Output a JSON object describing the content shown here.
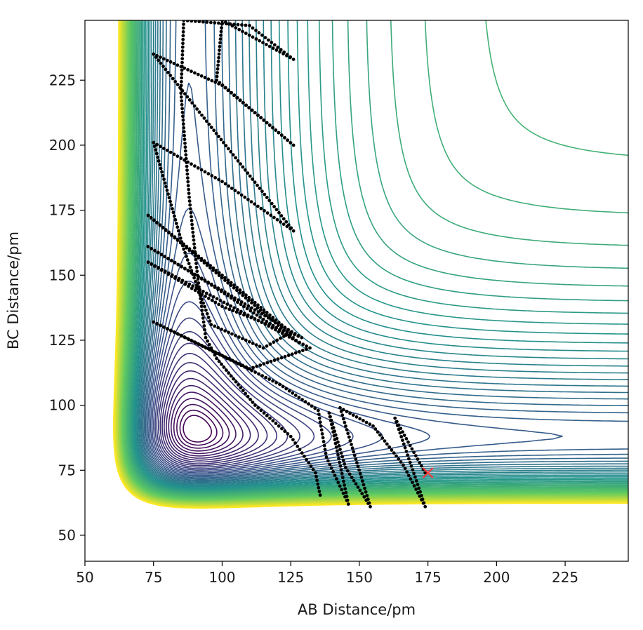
{
  "chart_data": {
    "type": "contour",
    "xlabel": "AB Distance/pm",
    "ylabel": "BC Distance/pm",
    "xlim": [
      50,
      248
    ],
    "ylim": [
      40,
      248
    ],
    "xticks": [
      50,
      75,
      100,
      125,
      150,
      175,
      200,
      225
    ],
    "yticks": [
      50,
      75,
      100,
      125,
      150,
      175,
      200,
      225
    ],
    "colormap": [
      "#440154",
      "#3b528b",
      "#21918c",
      "#5ec962",
      "#fde725"
    ],
    "contour_levels": 60,
    "trajectory": {
      "color": "#000000",
      "points": [
        [
          174,
          74
        ],
        [
          163,
          95
        ],
        [
          174,
          61
        ],
        [
          166,
          77
        ],
        [
          155,
          92
        ],
        [
          143,
          99
        ],
        [
          154,
          61
        ],
        [
          145,
          76
        ],
        [
          139,
          97
        ],
        [
          146,
          62
        ],
        [
          138,
          80
        ],
        [
          135,
          98
        ],
        [
          121,
          108
        ],
        [
          75,
          132
        ],
        [
          110,
          114
        ],
        [
          132,
          122
        ],
        [
          73,
          155
        ],
        [
          100,
          138
        ],
        [
          129,
          126
        ],
        [
          73,
          161
        ],
        [
          95,
          147
        ],
        [
          128,
          124
        ],
        [
          73,
          173
        ],
        [
          100,
          150
        ],
        [
          125,
          128
        ],
        [
          115,
          122
        ],
        [
          96,
          131
        ],
        [
          86,
          160
        ],
        [
          75,
          201
        ],
        [
          100,
          186
        ],
        [
          126,
          167
        ],
        [
          75,
          235
        ],
        [
          100,
          223
        ],
        [
          126,
          200
        ],
        [
          98,
          225
        ],
        [
          100,
          248
        ],
        [
          126,
          233
        ],
        [
          110,
          246
        ],
        [
          86,
          248
        ],
        [
          85,
          220
        ],
        [
          88,
          180
        ],
        [
          91,
          150
        ],
        [
          94,
          126
        ],
        [
          98,
          118
        ],
        [
          112,
          100
        ],
        [
          125,
          88
        ],
        [
          134,
          74
        ],
        [
          136,
          64
        ]
      ]
    },
    "marker": {
      "x": 175,
      "y": 74,
      "symbol": "x",
      "color": "#ff3b3b"
    }
  }
}
